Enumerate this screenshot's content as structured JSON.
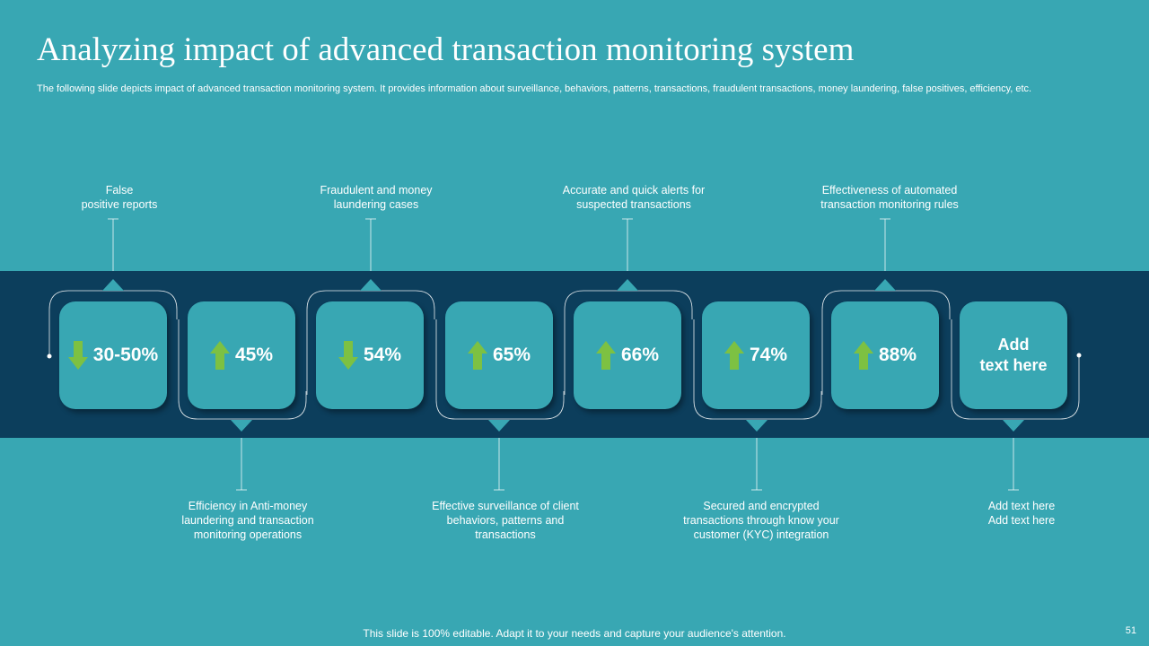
{
  "title": "Analyzing impact of advanced transaction monitoring system",
  "subtitle": "The following slide depicts impact of advanced transaction monitoring system. It provides information about surveillance, behaviors, patterns, transactions, fraudulent transactions, money laundering, false positives, efficiency, etc.",
  "top_labels": [
    {
      "line1": "False",
      "line2": "positive reports"
    },
    {
      "line1": "Fraudulent and money",
      "line2": "laundering cases"
    },
    {
      "line1": "Accurate and quick alerts for",
      "line2": "suspected transactions"
    },
    {
      "line1": "Effectiveness of automated",
      "line2": "transaction monitoring rules"
    }
  ],
  "bottom_labels": [
    {
      "line1": "Efficiency in Anti-money",
      "line2": "laundering and transaction",
      "line3": "monitoring operations"
    },
    {
      "line1": "Effective surveillance of client",
      "line2": "behaviors, patterns and",
      "line3": "transactions"
    },
    {
      "line1": "Secured and encrypted",
      "line2": "transactions through know your",
      "line3": "customer (KYC) integration"
    },
    {
      "line1": "Add text here",
      "line2": "Add text here",
      "line3": ""
    }
  ],
  "metrics": [
    {
      "value": "30-50%",
      "direction": "down",
      "icon": "down-arrow-icon"
    },
    {
      "value": "45%",
      "direction": "up",
      "icon": "up-arrow-icon"
    },
    {
      "value": "54%",
      "direction": "down",
      "icon": "down-arrow-icon"
    },
    {
      "value": "65%",
      "direction": "up",
      "icon": "up-arrow-icon"
    },
    {
      "value": "66%",
      "direction": "up",
      "icon": "up-arrow-icon"
    },
    {
      "value": "74%",
      "direction": "up",
      "icon": "up-arrow-icon"
    },
    {
      "value": "88%",
      "direction": "up",
      "icon": "up-arrow-icon"
    }
  ],
  "last_box": {
    "line1": "Add",
    "line2": "text here"
  },
  "footer": "This slide is 100% editable. Adapt it to your needs and capture your audience's attention.",
  "page_number": "51",
  "colors": {
    "background": "#38a7b3",
    "band": "#0c3e5c",
    "box": "#38a7b3",
    "arrow": "#7dc142",
    "connector": "#ffffff"
  }
}
